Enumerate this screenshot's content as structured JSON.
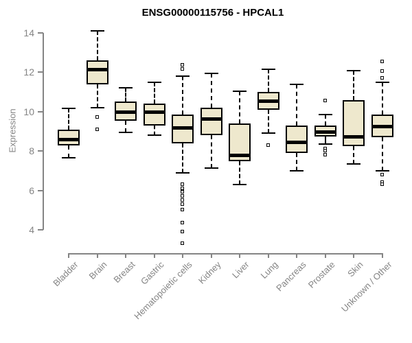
{
  "chart_data": {
    "type": "boxplot",
    "title": "ENSG00000115756 - HPCAL1",
    "xlabel": "",
    "ylabel": "Expression",
    "ylim": [
      4,
      14
    ],
    "yticks": [
      4,
      6,
      8,
      10,
      12,
      14
    ],
    "grid": false,
    "legend": "none",
    "categories": [
      "Bladder",
      "Brain",
      "Breast",
      "Gastric",
      "Hematopoietic cells",
      "Kidney",
      "Liver",
      "Lung",
      "Pancreas",
      "Prostate",
      "Skin",
      "Unknown / Other"
    ],
    "series": [
      {
        "name": "Bladder",
        "whisker_low": 7.65,
        "q1": 8.3,
        "median": 8.6,
        "q3": 9.1,
        "whisker_high": 10.15,
        "outliers": []
      },
      {
        "name": "Brain",
        "whisker_low": 10.2,
        "q1": 11.4,
        "median": 12.15,
        "q3": 12.6,
        "whisker_high": 14.1,
        "outliers": [
          9.7,
          9.1
        ]
      },
      {
        "name": "Breast",
        "whisker_low": 8.95,
        "q1": 9.55,
        "median": 10.0,
        "q3": 10.5,
        "whisker_high": 11.2,
        "outliers": []
      },
      {
        "name": "Gastric",
        "whisker_low": 8.8,
        "q1": 9.3,
        "median": 10.0,
        "q3": 10.4,
        "whisker_high": 11.5,
        "outliers": []
      },
      {
        "name": "Hematopoietic cells",
        "whisker_low": 6.9,
        "q1": 8.4,
        "median": 9.2,
        "q3": 9.85,
        "whisker_high": 11.8,
        "outliers": [
          12.35,
          12.15,
          6.3,
          6.1,
          5.9,
          5.7,
          5.5,
          5.3,
          5.0,
          4.35,
          3.9,
          3.3
        ]
      },
      {
        "name": "Kidney",
        "whisker_low": 7.15,
        "q1": 8.8,
        "median": 9.65,
        "q3": 10.2,
        "whisker_high": 11.95,
        "outliers": []
      },
      {
        "name": "Liver",
        "whisker_low": 6.3,
        "q1": 7.5,
        "median": 7.8,
        "q3": 9.4,
        "whisker_high": 11.05,
        "outliers": []
      },
      {
        "name": "Lung",
        "whisker_low": 8.9,
        "q1": 10.1,
        "median": 10.55,
        "q3": 11.0,
        "whisker_high": 12.15,
        "outliers": [
          8.3
        ]
      },
      {
        "name": "Pancreas",
        "whisker_low": 7.0,
        "q1": 7.9,
        "median": 8.45,
        "q3": 9.3,
        "whisker_high": 11.4,
        "outliers": []
      },
      {
        "name": "Prostate",
        "whisker_low": 8.35,
        "q1": 8.75,
        "median": 9.0,
        "q3": 9.3,
        "whisker_high": 9.85,
        "outliers": [
          10.55,
          8.1,
          8.0,
          7.8
        ]
      },
      {
        "name": "Skin",
        "whisker_low": 7.35,
        "q1": 8.25,
        "median": 8.75,
        "q3": 10.6,
        "whisker_high": 12.1,
        "outliers": []
      },
      {
        "name": "Unknown / Other",
        "whisker_low": 7.0,
        "q1": 8.7,
        "median": 9.25,
        "q3": 9.85,
        "whisker_high": 11.5,
        "outliers": [
          12.55,
          12.05,
          11.7,
          6.8,
          6.4,
          6.3
        ]
      }
    ],
    "colors": {
      "box_fill": "#EEE8CD",
      "box_border": "#000000",
      "median": "#000000",
      "whisker": "#000000",
      "outlier_border": "#000000",
      "axis": "#848484",
      "tick_text": "#848484",
      "title_text": "#000000",
      "background": "#FFFFFF"
    }
  }
}
